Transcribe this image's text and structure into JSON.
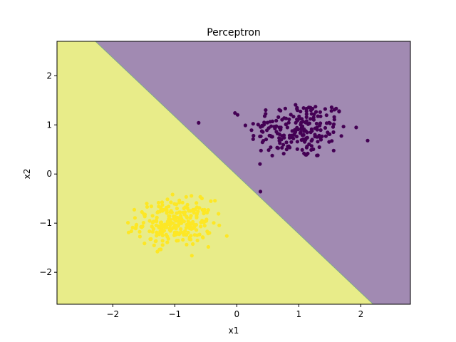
{
  "chart_data": {
    "type": "scatter",
    "title": "Perceptron",
    "xlabel": "x1",
    "ylabel": "x2",
    "xlim": [
      -2.9,
      2.8
    ],
    "ylim": [
      -2.65,
      2.7
    ],
    "xticks": [
      -2,
      -1,
      0,
      1,
      2
    ],
    "xtick_labels": [
      "−2",
      "−1",
      "0",
      "1",
      "2"
    ],
    "yticks": [
      -2,
      -1,
      0,
      1,
      2
    ],
    "ytick_labels": [
      "−2",
      "−1",
      "0",
      "1",
      "2"
    ],
    "grid": false,
    "decision_boundary": {
      "points": [
        [
          -2.28,
          2.7
        ],
        [
          2.2,
          -2.65
        ]
      ]
    },
    "regions": [
      {
        "side": "upper-right",
        "color": "#a18ab2"
      },
      {
        "side": "lower-left",
        "color": "#e8ec89"
      }
    ],
    "series": [
      {
        "color": "#440154",
        "center": [
          1.0,
          0.9
        ],
        "spread": [
          0.4,
          0.3
        ],
        "count": 220
      },
      {
        "color": "#fde725",
        "center": [
          -1.0,
          -1.0
        ],
        "spread": [
          0.3,
          0.23
        ],
        "count": 260
      }
    ]
  }
}
